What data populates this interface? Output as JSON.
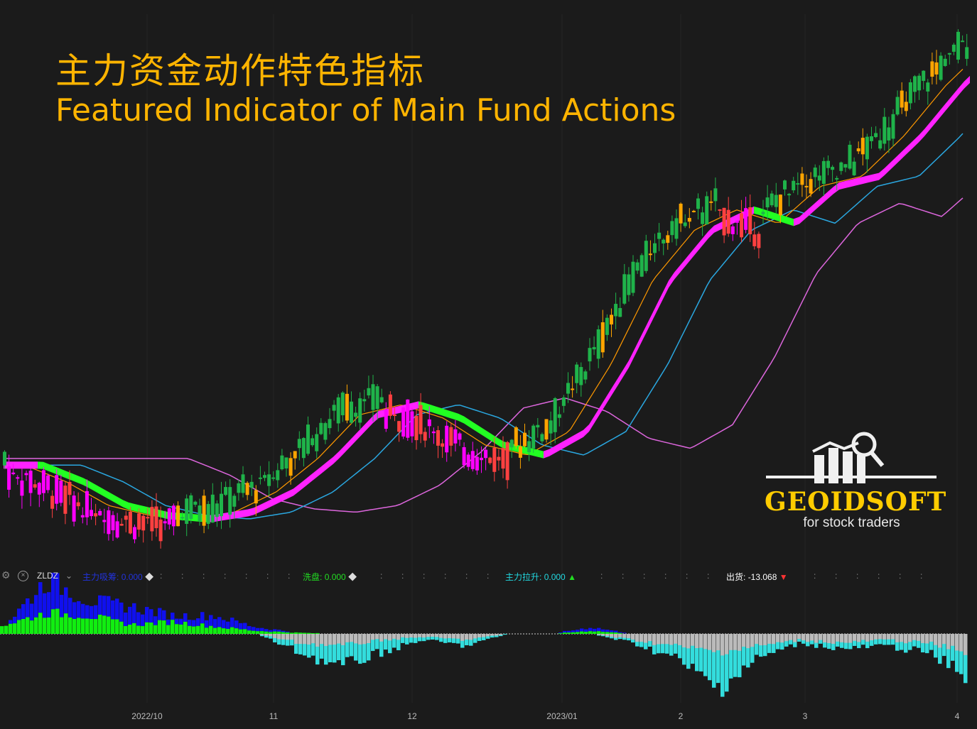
{
  "title_cn": "主力资金动作特色指标",
  "title_en": "Featured Indicator of Main Fund Actions",
  "logo": {
    "name": "GEOIDSOFT",
    "tagline": "for stock traders"
  },
  "indicator_bar": {
    "name": "ZLDZ",
    "items": [
      {
        "label": "主力吸筹:",
        "value": "0.000",
        "marker": "◆"
      },
      {
        "label": "洗盘:",
        "value": "0.000",
        "marker": "◆"
      },
      {
        "label": "主力拉升:",
        "value": "0.000",
        "marker": "▲"
      },
      {
        "label": "出货:",
        "value": "-13.068",
        "marker": "▼"
      }
    ]
  },
  "x_labels": [
    "2022/10",
    "11",
    "12",
    "2023/01",
    "2",
    "3",
    "4"
  ],
  "colors": {
    "background": "#1b1b1b",
    "candle_green": "#1fb34a",
    "candle_red": "#ff4040",
    "candle_orange": "#ffa500",
    "candle_magenta": "#ff00ff",
    "band_up": "#ff22ff",
    "band_down": "#22ff22",
    "ma_orange": "#ff9900",
    "ma_blue": "#2aa7e0",
    "ma_pink": "#dd66dd",
    "hist_blue": "#1010ee",
    "hist_green": "#11ee11",
    "hist_cyan": "#33dddd",
    "hist_gray": "#bbbbbb"
  },
  "chart_data": {
    "type": "candlestick_with_indicator",
    "x_ticks": [
      "2022/10",
      "11",
      "12",
      "2023/01",
      "2",
      "3",
      "4"
    ],
    "price_trend": [
      6.0,
      5.5,
      4.8,
      4.5,
      4.4,
      4.6,
      5.2,
      6.2,
      7.5,
      7.8,
      7.4,
      6.6,
      6.3,
      7.0,
      9.0,
      11.5,
      13.0,
      13.6,
      13.2,
      14.3,
      14.6,
      15.8,
      17.3,
      18.5
    ],
    "main_fund_actions": {
      "series": [
        {
          "name": "主力吸筹",
          "color": "blue",
          "values": [
            0,
            0.55,
            0.25,
            0.3,
            0.1,
            0.18,
            0.06,
            0,
            0,
            0,
            0,
            0,
            0,
            0,
            0.06,
            0,
            0,
            0,
            0,
            0,
            0,
            0,
            0,
            0
          ]
        },
        {
          "name": "洗盘",
          "color": "green",
          "values": [
            0.15,
            0.35,
            0.3,
            0.15,
            0.2,
            0.12,
            0.05,
            0.02,
            0,
            0,
            0,
            0,
            0,
            0,
            0.05,
            0,
            0,
            0,
            0,
            0,
            0,
            0,
            0,
            0
          ]
        },
        {
          "name": "主力拉升",
          "color": "cyan",
          "values": [
            0,
            0,
            0,
            0,
            0,
            0,
            0,
            -0.3,
            -0.55,
            -0.3,
            -0.1,
            -0.2,
            0,
            0,
            0,
            -0.15,
            -0.4,
            -0.9,
            -0.4,
            -0.15,
            -0.25,
            -0.2,
            -0.3,
            -0.7
          ]
        },
        {
          "name": "出货",
          "color": "gray",
          "values": [
            0,
            0,
            0,
            0,
            0,
            0,
            0,
            -0.15,
            -0.2,
            -0.1,
            -0.05,
            -0.1,
            0,
            0,
            0,
            -0.1,
            -0.2,
            -0.3,
            -0.2,
            -0.1,
            -0.15,
            -0.1,
            -0.15,
            -0.3
          ]
        }
      ]
    }
  }
}
